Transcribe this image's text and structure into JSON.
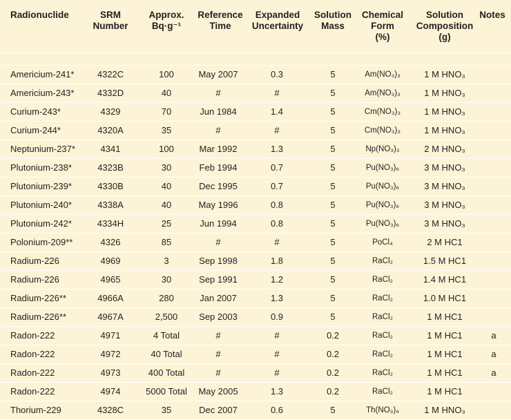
{
  "headers": {
    "radionuclide": [
      "Radionuclide"
    ],
    "srm_number": [
      "SRM",
      "Number"
    ],
    "approx_bq": [
      "Approx.",
      "Bq·g⁻¹"
    ],
    "reference_time": [
      "Reference",
      "Time"
    ],
    "expanded_uncertainty": [
      "Expanded",
      "Uncertainty"
    ],
    "solution_mass": [
      "Solution",
      "Mass"
    ],
    "chemical_form": [
      "Chemical",
      "Form",
      "(%)"
    ],
    "solution_composition": [
      "Solution",
      "Composition",
      "(g)"
    ],
    "notes": [
      "Notes"
    ]
  },
  "rows": [
    {
      "nuclide": "Americium-241*",
      "srm": "4322C",
      "bq": "100",
      "ref": "May 2007",
      "unc": "0.3",
      "mass": "5",
      "form": "Am(NO₃)₃",
      "comp": "1 M HNO₃",
      "notes": ""
    },
    {
      "nuclide": "Americium-243*",
      "srm": "4332D",
      "bq": "40",
      "ref": "#",
      "unc": "#",
      "mass": "5",
      "form": "Am(NO₃)₃",
      "comp": "1 M HNO₃",
      "notes": ""
    },
    {
      "nuclide": "Curium-243*",
      "srm": "4329",
      "bq": "70",
      "ref": "Jun 1984",
      "unc": "1.4",
      "mass": "5",
      "form": "Cm(NO₃)₃",
      "comp": "1 M HNO₃",
      "notes": ""
    },
    {
      "nuclide": "Curium-244*",
      "srm": "4320A",
      "bq": "35",
      "ref": "#",
      "unc": "#",
      "mass": "5",
      "form": "Cm(NO₃)₃",
      "comp": "1 M HNO₃",
      "notes": ""
    },
    {
      "nuclide": "Neptunium-237*",
      "srm": "4341",
      "bq": "100",
      "ref": "Mar 1992",
      "unc": "1.3",
      "mass": "5",
      "form": "Np(NO₃)₃",
      "comp": "2 M HNO₃",
      "notes": ""
    },
    {
      "nuclide": "Plutonium-238*",
      "srm": "4323B",
      "bq": "30",
      "ref": "Feb 1994",
      "unc": "0.7",
      "mass": "5",
      "form": "Pu(NO₃)₆",
      "comp": "3 M HNO₃",
      "notes": ""
    },
    {
      "nuclide": "Plutonium-239*",
      "srm": "4330B",
      "bq": "40",
      "ref": "Dec 1995",
      "unc": "0.7",
      "mass": "5",
      "form": "Pu(NO₃)₆",
      "comp": "3 M HNO₃",
      "notes": ""
    },
    {
      "nuclide": "Plutonium-240*",
      "srm": "4338A",
      "bq": "40",
      "ref": "May 1996",
      "unc": "0.8",
      "mass": "5",
      "form": "Pu(NO₃)₆",
      "comp": "3 M HNO₃",
      "notes": ""
    },
    {
      "nuclide": "Plutonium-242*",
      "srm": "4334H",
      "bq": "25",
      "ref": "Jun 1994",
      "unc": "0.8",
      "mass": "5",
      "form": "Pu(NO₃)₆",
      "comp": "3 M HNO₃",
      "notes": ""
    },
    {
      "nuclide": "Polonium-209**",
      "srm": "4326",
      "bq": "85",
      "ref": "#",
      "unc": "#",
      "mass": "5",
      "form": "PoCl₄",
      "comp": "2 M HC1",
      "notes": ""
    },
    {
      "nuclide": "Radium-226",
      "srm": "4969",
      "bq": "3",
      "ref": "Sep 1998",
      "unc": "1.8",
      "mass": "5",
      "form": "RaCl₂",
      "comp": "1.5 M HC1",
      "notes": ""
    },
    {
      "nuclide": "Radium-226",
      "srm": "4965",
      "bq": "30",
      "ref": "Sep 1991",
      "unc": "1.2",
      "mass": "5",
      "form": "RaCl₂",
      "comp": "1.4 M HC1",
      "notes": ""
    },
    {
      "nuclide": "Radium-226**",
      "srm": "4966A",
      "bq": "280",
      "ref": "Jan 2007",
      "unc": "1.3",
      "mass": "5",
      "form": "RaCl₂",
      "comp": "1.0 M HC1",
      "notes": ""
    },
    {
      "nuclide": "Radium-226**",
      "srm": "4967A",
      "bq": "2,500",
      "ref": "Sep 2003",
      "unc": "0.9",
      "mass": "5",
      "form": "RaCl₂",
      "comp": "1 M HC1",
      "notes": ""
    },
    {
      "nuclide": "Radon-222",
      "srm": "4971",
      "bq": "4 Total",
      "ref": "#",
      "unc": "#",
      "mass": "0.2",
      "form": "RaCl₂",
      "comp": "1 M HC1",
      "notes": "a"
    },
    {
      "nuclide": "Radon-222",
      "srm": "4972",
      "bq": "40 Total",
      "ref": "#",
      "unc": "#",
      "mass": "0.2",
      "form": "RaCl₂",
      "comp": "1 M HC1",
      "notes": "a"
    },
    {
      "nuclide": "Radon-222",
      "srm": "4973",
      "bq": "400 Total",
      "ref": "#",
      "unc": "#",
      "mass": "0.2",
      "form": "RaCl₂",
      "comp": "1 M HC1",
      "notes": "a"
    },
    {
      "nuclide": "Radon-222",
      "srm": "4974",
      "bq": "5000 Total",
      "ref": "May 2005",
      "unc": "1.3",
      "mass": "0.2",
      "form": "RaCl₂",
      "comp": "1 M HC1",
      "notes": ""
    },
    {
      "nuclide": "Thorium-229",
      "srm": "4328C",
      "bq": "35",
      "ref": "Dec 2007",
      "unc": "0.6",
      "mass": "5",
      "form": "Th(NO₃)₄",
      "comp": "1 M HNO₃",
      "notes": ""
    }
  ],
  "colors": {
    "background": "#fdf3d6",
    "row_divider": "#ffffff",
    "text": "#231f20"
  }
}
